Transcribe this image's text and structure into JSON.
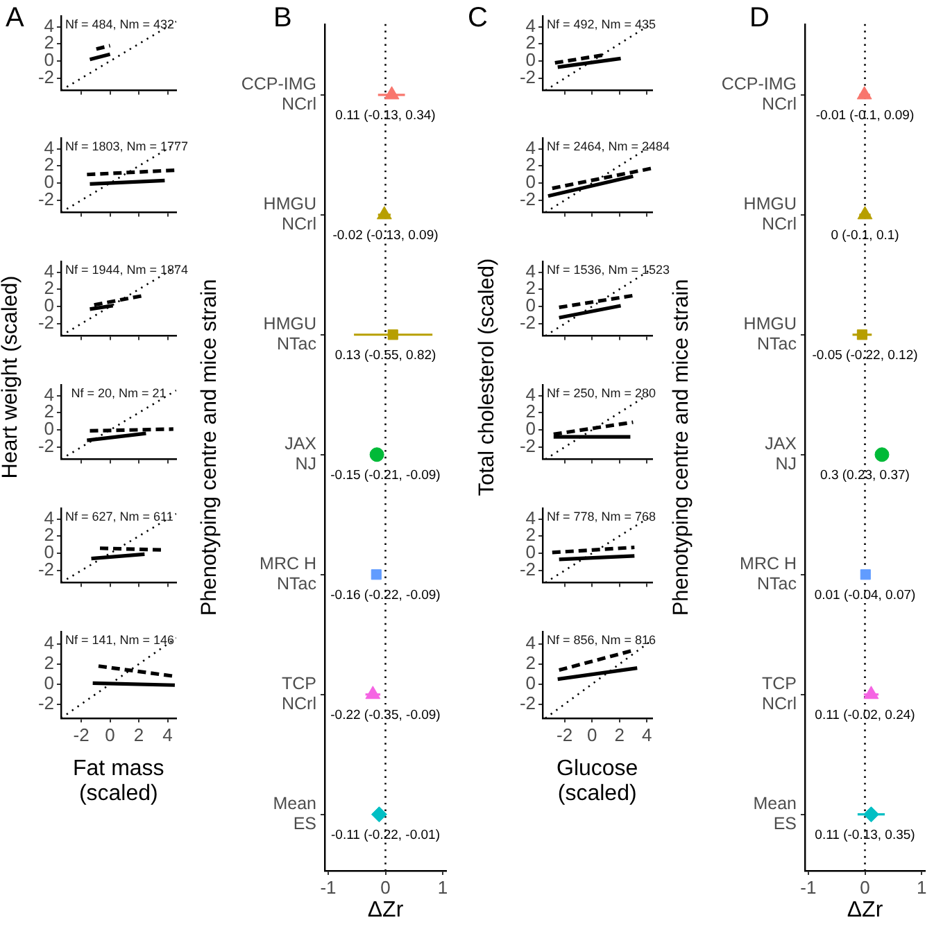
{
  "chart_data": [
    {
      "type": "line",
      "title": "A",
      "xlim": [
        -3.4,
        4.6
      ],
      "ylim": [
        -3.4,
        5.2
      ],
      "xticks": [
        -2,
        0,
        2,
        4
      ],
      "yticks": [
        -2,
        0,
        2,
        4
      ],
      "tick_labels": "y",
      "annotations": [
        "Nf = 484, Nm = 432"
      ],
      "series": [
        {
          "color": "#000000",
          "line_style": "dashed",
          "x": [
            -0.95,
            0
          ],
          "values": [
            1.4,
            1.8
          ]
        },
        {
          "color": "#000000",
          "line_style": "solid",
          "x": [
            -1.4,
            0
          ],
          "values": [
            0.2,
            0.8
          ]
        },
        {
          "color": "#000000",
          "line_style": "dotted",
          "x": [
            -3.4,
            4.6
          ],
          "values": [
            -3.4,
            4.6
          ]
        }
      ]
    },
    {
      "type": "line",
      "xlim": [
        -3.4,
        4.6
      ],
      "ylim": [
        -3.4,
        5.2
      ],
      "xticks": [
        -2,
        0,
        2,
        4
      ],
      "yticks": [
        -2,
        0,
        2,
        4
      ],
      "tick_labels": "y",
      "annotations": [
        "Nf = 1803, Nm = 1777"
      ],
      "series": [
        {
          "color": "#000000",
          "line_style": "dashed",
          "x": [
            -1.6,
            4.5
          ],
          "values": [
            1.0,
            1.5
          ]
        },
        {
          "color": "#000000",
          "line_style": "solid",
          "x": [
            -1.4,
            3.8
          ],
          "values": [
            -0.1,
            0.3
          ]
        },
        {
          "color": "#000000",
          "line_style": "dotted",
          "x": [
            -3.4,
            4.6
          ],
          "values": [
            -3.4,
            4.6
          ]
        }
      ]
    },
    {
      "type": "line",
      "xlim": [
        -3.4,
        4.6
      ],
      "ylim": [
        -3.4,
        5.2
      ],
      "xticks": [
        -2,
        0,
        2,
        4
      ],
      "yticks": [
        -2,
        0,
        2,
        4
      ],
      "tick_labels": "y",
      "annotations": [
        "Nf = 1944, Nm = 1874"
      ],
      "series": [
        {
          "color": "#000000",
          "line_style": "dashed",
          "x": [
            -1.1,
            2.4
          ],
          "values": [
            0.2,
            1.3
          ]
        },
        {
          "color": "#000000",
          "line_style": "solid",
          "x": [
            -1.4,
            0.2
          ],
          "values": [
            -0.3,
            0.1
          ]
        },
        {
          "color": "#000000",
          "line_style": "dotted",
          "x": [
            -3.4,
            4.6
          ],
          "values": [
            -3.4,
            4.6
          ]
        }
      ]
    },
    {
      "type": "line",
      "ylabel": "Heart weight (scaled)",
      "xlim": [
        -3.4,
        4.6
      ],
      "ylim": [
        -3.4,
        5.2
      ],
      "xticks": [
        -2,
        0,
        2,
        4
      ],
      "yticks": [
        -2,
        0,
        2,
        4
      ],
      "tick_labels": "y",
      "annotations": [
        "Nf = 20, Nm = 21"
      ],
      "series": [
        {
          "color": "#000000",
          "line_style": "dashed",
          "x": [
            -1.4,
            4.4
          ],
          "values": [
            -0.1,
            0.1
          ]
        },
        {
          "color": "#000000",
          "line_style": "solid",
          "x": [
            -1.6,
            2.5
          ],
          "values": [
            -1.2,
            -0.4
          ]
        },
        {
          "color": "#000000",
          "line_style": "dotted",
          "x": [
            -3.4,
            4.6
          ],
          "values": [
            -3.4,
            4.6
          ]
        }
      ]
    },
    {
      "type": "line",
      "xlim": [
        -3.4,
        4.6
      ],
      "ylim": [
        -3.4,
        5.2
      ],
      "xticks": [
        -2,
        0,
        2,
        4
      ],
      "yticks": [
        -2,
        0,
        2,
        4
      ],
      "tick_labels": "y",
      "annotations": [
        "Nf = 627, Nm = 611"
      ],
      "series": [
        {
          "color": "#000000",
          "line_style": "dashed",
          "x": [
            -0.7,
            3.6
          ],
          "values": [
            0.6,
            0.4
          ]
        },
        {
          "color": "#000000",
          "line_style": "solid",
          "x": [
            -1.3,
            2.4
          ],
          "values": [
            -0.6,
            -0.1
          ]
        },
        {
          "color": "#000000",
          "line_style": "dotted",
          "x": [
            -3.4,
            4.6
          ],
          "values": [
            -3.4,
            4.6
          ]
        }
      ]
    },
    {
      "type": "line",
      "xlabel": "Fat mass\n(scaled)",
      "xlim": [
        -3.4,
        4.6
      ],
      "ylim": [
        -3.4,
        5.2
      ],
      "xticks": [
        -2,
        0,
        2,
        4
      ],
      "yticks": [
        -2,
        0,
        2,
        4
      ],
      "annotations": [
        "Nf = 141, Nm = 146"
      ],
      "series": [
        {
          "color": "#000000",
          "line_style": "dashed",
          "x": [
            -0.8,
            4.4
          ],
          "values": [
            1.8,
            0.8
          ]
        },
        {
          "color": "#000000",
          "line_style": "solid",
          "x": [
            -1.2,
            4.5
          ],
          "values": [
            0.1,
            -0.1
          ]
        },
        {
          "color": "#000000",
          "line_style": "dotted",
          "x": [
            -3.4,
            4.6
          ],
          "values": [
            -3.4,
            4.6
          ]
        }
      ]
    },
    {
      "type": "scatter",
      "orientation": "horizontal",
      "title": "B",
      "xlabel": "ΔZr",
      "ylabel": "Phenotyping centre and mice strain",
      "xlim": [
        -1.06,
        1.06
      ],
      "xticks": [
        -1,
        0,
        1
      ],
      "categories": [
        "CCP-IMG\nNCrl",
        "HMGU\nNCrl",
        "HMGU\nNTac",
        "JAX\nNJ",
        "MRC H\nNTac",
        "TCP\nNCrl",
        "Mean\nES"
      ],
      "series": [
        {
          "marker": "triangle",
          "color": "#f8766d",
          "values": [
            0.11,
            null,
            null,
            null,
            null,
            null,
            null
          ],
          "errors": [
            [
              -0.13,
              0.34
            ],
            null,
            null,
            null,
            null,
            null,
            null
          ],
          "value_labels": [
            "0.11 (-0.13, 0.34)",
            null,
            null,
            null,
            null,
            null,
            null
          ]
        },
        {
          "marker": "triangle",
          "color": "#b79f00",
          "values": [
            null,
            -0.02,
            null,
            null,
            null,
            null,
            null
          ],
          "errors": [
            null,
            [
              -0.13,
              0.09
            ],
            null,
            null,
            null,
            null,
            null
          ],
          "value_labels": [
            null,
            "-0.02 (-0.13, 0.09)",
            null,
            null,
            null,
            null,
            null
          ]
        },
        {
          "marker": "square",
          "color": "#b79f00",
          "values": [
            null,
            null,
            0.13,
            null,
            null,
            null,
            null
          ],
          "errors": [
            null,
            null,
            [
              -0.55,
              0.82
            ],
            null,
            null,
            null,
            null
          ],
          "value_labels": [
            null,
            null,
            "0.13 (-0.55, 0.82)",
            null,
            null,
            null,
            null
          ]
        },
        {
          "marker": "circle",
          "color": "#00ba38",
          "values": [
            null,
            null,
            null,
            -0.15,
            null,
            null,
            null
          ],
          "errors": [
            null,
            null,
            null,
            [
              -0.21,
              -0.09
            ],
            null,
            null,
            null
          ],
          "value_labels": [
            null,
            null,
            null,
            "-0.15 (-0.21, -0.09)",
            null,
            null,
            null
          ]
        },
        {
          "marker": "square",
          "color": "#619cff",
          "values": [
            null,
            null,
            null,
            null,
            -0.16,
            null,
            null
          ],
          "errors": [
            null,
            null,
            null,
            null,
            [
              -0.22,
              -0.09
            ],
            null,
            null
          ],
          "value_labels": [
            null,
            null,
            null,
            null,
            "-0.16 (-0.22, -0.09)",
            null,
            null
          ]
        },
        {
          "marker": "triangle",
          "color": "#f564e3",
          "values": [
            null,
            null,
            null,
            null,
            null,
            -0.22,
            null
          ],
          "errors": [
            null,
            null,
            null,
            null,
            null,
            [
              -0.35,
              -0.09
            ],
            null
          ],
          "value_labels": [
            null,
            null,
            null,
            null,
            null,
            "-0.22 (-0.35, -0.09)",
            null
          ]
        },
        {
          "marker": "diamond",
          "color": "#00bfc4",
          "values": [
            null,
            null,
            null,
            null,
            null,
            null,
            -0.11
          ],
          "errors": [
            null,
            null,
            null,
            null,
            null,
            null,
            [
              -0.22,
              -0.01
            ]
          ],
          "value_labels": [
            null,
            null,
            null,
            null,
            null,
            null,
            "-0.11 (-0.22, -0.01)"
          ]
        }
      ],
      "ref_lines": [
        {
          "axis": "x",
          "value": 0,
          "line_style": "dotted",
          "color": "#000000"
        }
      ]
    },
    {
      "type": "line",
      "title": "C",
      "xlim": [
        -3.6,
        4.4
      ],
      "ylim": [
        -3.4,
        5.2
      ],
      "xticks": [
        -2,
        0,
        2,
        4
      ],
      "yticks": [
        -2,
        0,
        2,
        4
      ],
      "tick_labels": "y",
      "annotations": [
        "Nf = 492, Nm = 435"
      ],
      "series": [
        {
          "color": "#000000",
          "line_style": "dashed",
          "x": [
            -2.7,
            0.8
          ],
          "values": [
            -0.2,
            0.7
          ]
        },
        {
          "color": "#000000",
          "line_style": "solid",
          "x": [
            -2.5,
            2.1
          ],
          "values": [
            -0.7,
            0.3
          ]
        },
        {
          "color": "#000000",
          "line_style": "dotted",
          "x": [
            -3.4,
            4.4
          ],
          "values": [
            -3.4,
            4.4
          ]
        }
      ]
    },
    {
      "type": "line",
      "xlim": [
        -3.6,
        4.4
      ],
      "ylim": [
        -3.4,
        5.2
      ],
      "xticks": [
        -2,
        0,
        2,
        4
      ],
      "yticks": [
        -2,
        0,
        2,
        4
      ],
      "tick_labels": "y",
      "annotations": [
        "Nf = 2464, Nm = 2484"
      ],
      "series": [
        {
          "color": "#000000",
          "line_style": "dashed",
          "x": [
            -2.9,
            4.3
          ],
          "values": [
            -0.6,
            1.7
          ]
        },
        {
          "color": "#000000",
          "line_style": "solid",
          "x": [
            -3.2,
            3.0
          ],
          "values": [
            -1.5,
            0.8
          ]
        },
        {
          "color": "#000000",
          "line_style": "dotted",
          "x": [
            -3.4,
            4.4
          ],
          "values": [
            -3.4,
            4.4
          ]
        }
      ]
    },
    {
      "type": "line",
      "xlim": [
        -3.6,
        4.4
      ],
      "ylim": [
        -3.4,
        5.2
      ],
      "xticks": [
        -2,
        0,
        2,
        4
      ],
      "yticks": [
        -2,
        0,
        2,
        4
      ],
      "tick_labels": "y",
      "annotations": [
        "Nf = 1536, Nm = 1523"
      ],
      "series": [
        {
          "color": "#000000",
          "line_style": "dashed",
          "x": [
            -2.4,
            3.1
          ],
          "values": [
            -0.1,
            1.3
          ]
        },
        {
          "color": "#000000",
          "line_style": "solid",
          "x": [
            -2.4,
            2.1
          ],
          "values": [
            -1.3,
            0.1
          ]
        },
        {
          "color": "#000000",
          "line_style": "dotted",
          "x": [
            -3.4,
            4.4
          ],
          "values": [
            -3.4,
            4.4
          ]
        }
      ]
    },
    {
      "type": "line",
      "ylabel": "Total cholesterol (scaled)",
      "xlim": [
        -3.6,
        4.4
      ],
      "ylim": [
        -3.4,
        5.2
      ],
      "xticks": [
        -2,
        0,
        2,
        4
      ],
      "yticks": [
        -2,
        0,
        2,
        4
      ],
      "tick_labels": "y",
      "annotations": [
        "Nf = 250, Nm = 280"
      ],
      "series": [
        {
          "color": "#000000",
          "line_style": "dashed",
          "x": [
            -2.8,
            3.0
          ],
          "values": [
            -0.5,
            0.9
          ]
        },
        {
          "color": "#000000",
          "line_style": "solid",
          "x": [
            -2.8,
            2.8
          ],
          "values": [
            -0.8,
            -0.8
          ]
        },
        {
          "color": "#000000",
          "line_style": "dotted",
          "x": [
            -3.4,
            4.4
          ],
          "values": [
            -3.4,
            4.4
          ]
        }
      ]
    },
    {
      "type": "line",
      "xlim": [
        -3.6,
        4.4
      ],
      "ylim": [
        -3.4,
        5.2
      ],
      "xticks": [
        -2,
        0,
        2,
        4
      ],
      "yticks": [
        -2,
        0,
        2,
        4
      ],
      "tick_labels": "y",
      "annotations": [
        "Nf = 778, Nm = 768"
      ],
      "series": [
        {
          "color": "#000000",
          "line_style": "dashed",
          "x": [
            -2.9,
            3.1
          ],
          "values": [
            0.1,
            0.7
          ]
        },
        {
          "color": "#000000",
          "line_style": "solid",
          "x": [
            -2.4,
            3.1
          ],
          "values": [
            -0.7,
            -0.3
          ]
        },
        {
          "color": "#000000",
          "line_style": "dotted",
          "x": [
            -3.4,
            4.4
          ],
          "values": [
            -3.4,
            4.4
          ]
        }
      ]
    },
    {
      "type": "line",
      "xlabel": "Glucose\n(scaled)",
      "xlim": [
        -3.6,
        4.4
      ],
      "ylim": [
        -3.4,
        5.2
      ],
      "xticks": [
        -2,
        0,
        2,
        4
      ],
      "yticks": [
        -2,
        0,
        2,
        4
      ],
      "annotations": [
        "Nf = 856, Nm = 816"
      ],
      "series": [
        {
          "color": "#000000",
          "line_style": "dashed",
          "x": [
            -2.4,
            3.1
          ],
          "values": [
            1.4,
            3.4
          ]
        },
        {
          "color": "#000000",
          "line_style": "solid",
          "x": [
            -2.5,
            3.3
          ],
          "values": [
            0.5,
            1.6
          ]
        },
        {
          "color": "#000000",
          "line_style": "dotted",
          "x": [
            -3.4,
            4.4
          ],
          "values": [
            -3.4,
            4.4
          ]
        }
      ]
    },
    {
      "type": "scatter",
      "orientation": "horizontal",
      "title": "D",
      "xlabel": "ΔZr",
      "ylabel": "Phenotyping centre and mice strain",
      "xlim": [
        -1.06,
        1.06
      ],
      "xticks": [
        -1,
        0,
        1
      ],
      "categories": [
        "CCP-IMG\nNCrl",
        "HMGU\nNCrl",
        "HMGU\nNTac",
        "JAX\nNJ",
        "MRC H\nNTac",
        "TCP\nNCrl",
        "Mean\nES"
      ],
      "series": [
        {
          "marker": "triangle",
          "color": "#f8766d",
          "values": [
            -0.01,
            null,
            null,
            null,
            null,
            null,
            null
          ],
          "errors": [
            [
              -0.1,
              0.09
            ],
            null,
            null,
            null,
            null,
            null,
            null
          ],
          "value_labels": [
            "-0.01 (-0.1, 0.09)",
            null,
            null,
            null,
            null,
            null,
            null
          ]
        },
        {
          "marker": "triangle",
          "color": "#b79f00",
          "values": [
            null,
            0,
            null,
            null,
            null,
            null,
            null
          ],
          "errors": [
            null,
            [
              -0.1,
              0.1
            ],
            null,
            null,
            null,
            null,
            null
          ],
          "value_labels": [
            null,
            "0 (-0.1, 0.1)",
            null,
            null,
            null,
            null,
            null
          ]
        },
        {
          "marker": "square",
          "color": "#b79f00",
          "values": [
            null,
            null,
            -0.05,
            null,
            null,
            null,
            null
          ],
          "errors": [
            null,
            null,
            [
              -0.22,
              0.12
            ],
            null,
            null,
            null,
            null
          ],
          "value_labels": [
            null,
            null,
            "-0.05 (-0.22, 0.12)",
            null,
            null,
            null,
            null
          ]
        },
        {
          "marker": "circle",
          "color": "#00ba38",
          "values": [
            null,
            null,
            null,
            0.3,
            null,
            null,
            null
          ],
          "errors": [
            null,
            null,
            null,
            [
              0.23,
              0.37
            ],
            null,
            null,
            null
          ],
          "value_labels": [
            null,
            null,
            null,
            "0.3 (0.23, 0.37)",
            null,
            null,
            null
          ]
        },
        {
          "marker": "square",
          "color": "#619cff",
          "values": [
            null,
            null,
            null,
            null,
            0.01,
            null,
            null
          ],
          "errors": [
            null,
            null,
            null,
            null,
            [
              -0.04,
              0.07
            ],
            null,
            null
          ],
          "value_labels": [
            null,
            null,
            null,
            null,
            "0.01 (-0.04, 0.07)",
            null,
            null
          ]
        },
        {
          "marker": "triangle",
          "color": "#f564e3",
          "values": [
            null,
            null,
            null,
            null,
            null,
            0.11,
            null
          ],
          "errors": [
            null,
            null,
            null,
            null,
            null,
            [
              -0.02,
              0.24
            ],
            null
          ],
          "value_labels": [
            null,
            null,
            null,
            null,
            null,
            "0.11 (-0.02, 0.24)",
            null
          ]
        },
        {
          "marker": "diamond",
          "color": "#00bfc4",
          "values": [
            null,
            null,
            null,
            null,
            null,
            null,
            0.11
          ],
          "errors": [
            null,
            null,
            null,
            null,
            null,
            null,
            [
              -0.13,
              0.35
            ]
          ],
          "value_labels": [
            null,
            null,
            null,
            null,
            null,
            null,
            "0.11 (-0.13, 0.35)"
          ]
        }
      ],
      "ref_lines": [
        {
          "axis": "x",
          "value": 0,
          "line_style": "dotted",
          "color": "#000000"
        }
      ]
    }
  ]
}
